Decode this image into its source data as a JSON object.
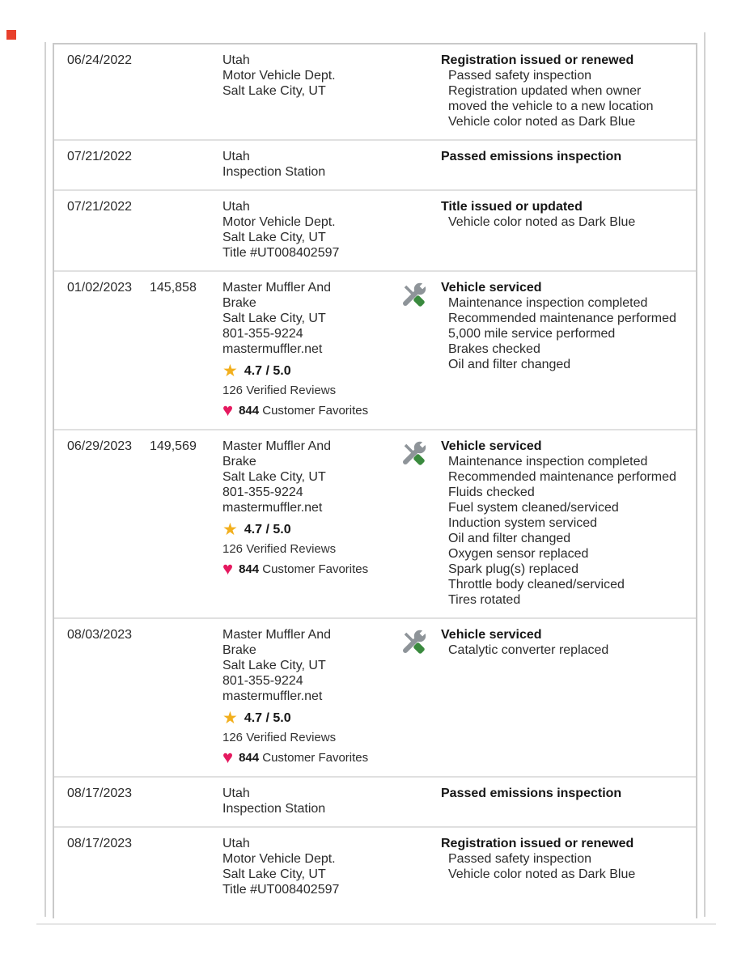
{
  "colors": {
    "marker": "#e8402c",
    "star": "#F2AF1D",
    "heart": "#E5195F",
    "tool_gray": "#8E9499",
    "tool_green": "#3A8A3E"
  },
  "table": {
    "rows": [
      {
        "date": "06/24/2022",
        "mileage": "",
        "source_lines": [
          "Utah",
          "Motor Vehicle Dept.",
          "Salt Lake City, UT"
        ],
        "service_icon": false,
        "title": "Registration issued or renewed",
        "details": [
          "Passed safety inspection",
          "Registration updated when owner moved the vehicle to a new location",
          "Vehicle color noted as Dark Blue"
        ]
      },
      {
        "date": "07/21/2022",
        "mileage": "",
        "source_lines": [
          "Utah",
          "Inspection Station"
        ],
        "service_icon": false,
        "title": "Passed emissions inspection",
        "details": []
      },
      {
        "date": "07/21/2022",
        "mileage": "",
        "source_lines": [
          "Utah",
          "Motor Vehicle Dept.",
          "Salt Lake City, UT",
          "Title #UT008402597"
        ],
        "service_icon": false,
        "title": "Title issued or updated",
        "details": [
          "Vehicle color noted as Dark Blue"
        ]
      },
      {
        "date": "01/02/2023",
        "mileage": "145,858",
        "source_lines": [
          "Master Muffler And",
          "Brake",
          "Salt Lake City, UT",
          "801-355-9224",
          "mastermuffler.net"
        ],
        "ratings": {
          "star_icon": "★",
          "rating": "4.7 / 5.0",
          "reviews": "126 Verified Reviews",
          "heart_icon": "♥",
          "favorites_count": "844",
          "favorites_label": "Customer Favorites"
        },
        "service_icon": true,
        "title": "Vehicle serviced",
        "details": [
          "Maintenance inspection completed",
          "Recommended maintenance performed",
          "5,000 mile service performed",
          "Brakes checked",
          "Oil and filter changed"
        ]
      },
      {
        "date": "06/29/2023",
        "mileage": "149,569",
        "source_lines": [
          "Master Muffler And",
          "Brake",
          "Salt Lake City, UT",
          "801-355-9224",
          "mastermuffler.net"
        ],
        "ratings": {
          "star_icon": "★",
          "rating": "4.7 / 5.0",
          "reviews": "126 Verified Reviews",
          "heart_icon": "♥",
          "favorites_count": "844",
          "favorites_label": "Customer Favorites"
        },
        "service_icon": true,
        "title": "Vehicle serviced",
        "details": [
          "Maintenance inspection completed",
          "Recommended maintenance performed",
          "Fluids checked",
          "Fuel system cleaned/serviced",
          "Induction system serviced",
          "Oil and filter changed",
          "Oxygen sensor replaced",
          "Spark plug(s) replaced",
          "Throttle body cleaned/serviced",
          "Tires rotated"
        ]
      },
      {
        "date": "08/03/2023",
        "mileage": "",
        "source_lines": [
          "Master Muffler And",
          "Brake",
          "Salt Lake City, UT",
          "801-355-9224",
          "mastermuffler.net"
        ],
        "ratings": {
          "star_icon": "★",
          "rating": "4.7 / 5.0",
          "reviews": "126 Verified Reviews",
          "heart_icon": "♥",
          "favorites_count": "844",
          "favorites_label": "Customer Favorites"
        },
        "service_icon": true,
        "title": "Vehicle serviced",
        "details": [
          "Catalytic converter replaced"
        ]
      },
      {
        "date": "08/17/2023",
        "mileage": "",
        "source_lines": [
          "Utah",
          "Inspection Station"
        ],
        "service_icon": false,
        "title": "Passed emissions inspection",
        "details": []
      },
      {
        "date": "08/17/2023",
        "mileage": "",
        "source_lines": [
          "Utah",
          "Motor Vehicle Dept.",
          "Salt Lake City, UT",
          "Title #UT008402597"
        ],
        "service_icon": false,
        "title": "Registration issued or renewed",
        "details": [
          "Passed safety inspection",
          "Vehicle color noted as Dark Blue"
        ]
      }
    ]
  }
}
